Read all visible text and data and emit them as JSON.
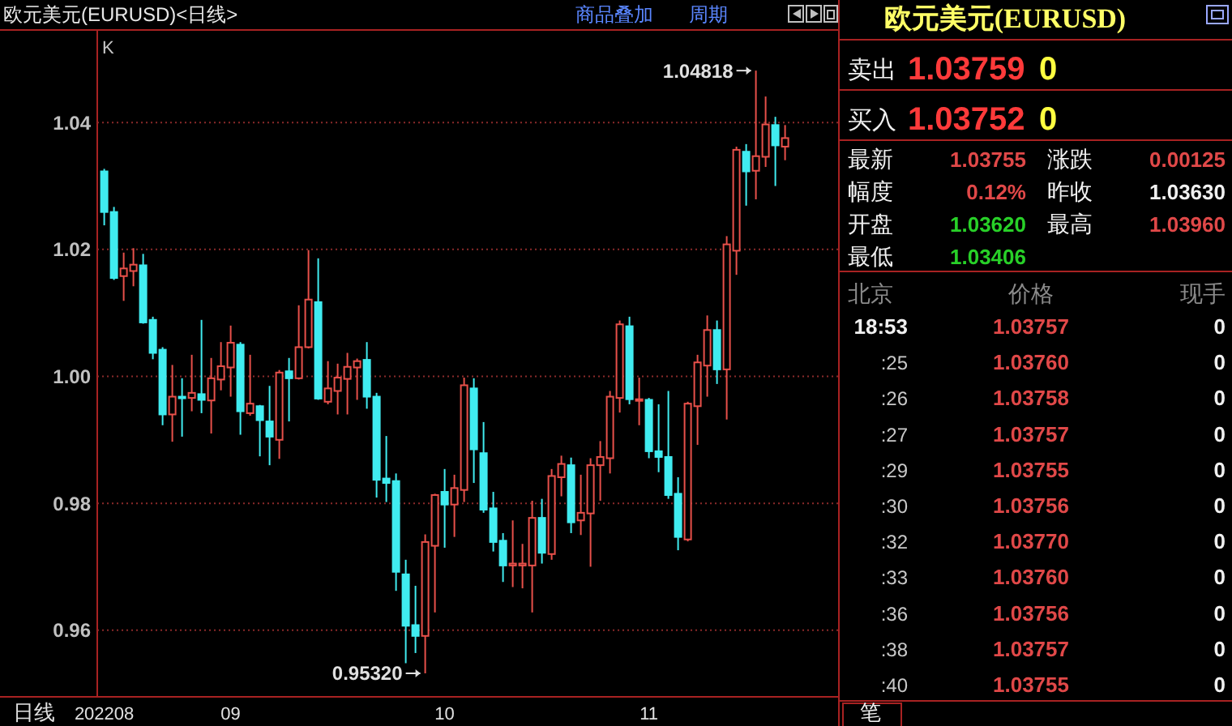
{
  "chart_data": [
    {
      "type": "candlestick",
      "title": "欧元美元(EURUSD)<日线>",
      "categories": [
        "202208",
        null,
        null,
        null,
        null,
        null,
        null,
        null,
        null,
        null,
        null,
        null,
        null,
        "09",
        null,
        null,
        null,
        null,
        null,
        null,
        null,
        null,
        null,
        null,
        null,
        null,
        null,
        null,
        null,
        null,
        null,
        null,
        null,
        null,
        null,
        "10",
        null,
        null,
        null,
        null,
        null,
        null,
        null,
        null,
        null,
        null,
        null,
        null,
        null,
        null,
        null,
        null,
        null,
        null,
        null,
        null,
        "11",
        null,
        null,
        null,
        null,
        null,
        null,
        null,
        null,
        null,
        null,
        null,
        null,
        null,
        null
      ],
      "ohlc": [
        [
          1.0323,
          1.0327,
          1.0238,
          1.0259
        ],
        [
          1.0259,
          1.0267,
          1.0152,
          1.0155
        ],
        [
          1.0158,
          1.0195,
          1.0119,
          1.017
        ],
        [
          1.0166,
          1.0202,
          1.0142,
          1.0176
        ],
        [
          1.0175,
          1.0193,
          1.0083,
          1.0085
        ],
        [
          1.0089,
          1.0094,
          1.0027,
          1.0037
        ],
        [
          1.0042,
          1.0046,
          0.9923,
          0.994
        ],
        [
          0.994,
          1.0018,
          0.9897,
          0.9968
        ],
        [
          0.9968,
          0.9997,
          0.9905,
          0.9966
        ],
        [
          0.9966,
          1.0034,
          0.9945,
          0.9974
        ],
        [
          0.9972,
          1.0089,
          0.9942,
          0.9963
        ],
        [
          0.9962,
          1.0029,
          0.991,
          0.9997
        ],
        [
          0.9995,
          1.0054,
          0.9978,
          1.0016
        ],
        [
          1.0014,
          1.008,
          0.9968,
          1.0053
        ],
        [
          1.005,
          1.0054,
          0.9908,
          0.9945
        ],
        [
          0.9942,
          1.0034,
          0.9938,
          0.9957
        ],
        [
          0.9953,
          0.9955,
          0.9874,
          0.9931
        ],
        [
          0.9929,
          0.9985,
          0.986,
          0.9905
        ],
        [
          0.99,
          1.001,
          0.987,
          1.0006
        ],
        [
          1.0008,
          1.0029,
          0.9929,
          0.9997
        ],
        [
          0.9997,
          1.0112,
          0.9995,
          1.0046
        ],
        [
          1.0046,
          1.0199,
          1.0044,
          1.0121
        ],
        [
          1.0117,
          1.0186,
          0.9963,
          0.9965
        ],
        [
          0.996,
          1.0024,
          0.9956,
          0.9981
        ],
        [
          0.9977,
          1.002,
          0.994,
          0.9998
        ],
        [
          0.9996,
          1.0037,
          0.994,
          1.0015
        ],
        [
          1.0014,
          1.0028,
          0.9963,
          1.0024
        ],
        [
          1.0026,
          1.0054,
          0.9949,
          0.9968
        ],
        [
          0.9968,
          0.9974,
          0.9809,
          0.9837
        ],
        [
          0.9839,
          0.9906,
          0.9802,
          0.9832
        ],
        [
          0.9835,
          0.9847,
          0.9662,
          0.9692
        ],
        [
          0.9688,
          0.9711,
          0.9548,
          0.9607
        ],
        [
          0.9608,
          0.967,
          0.9564,
          0.9591
        ],
        [
          0.9591,
          0.9751,
          0.9532,
          0.9739
        ],
        [
          0.9733,
          0.9815,
          0.9628,
          0.9813
        ],
        [
          0.9818,
          0.9854,
          0.973,
          0.9798
        ],
        [
          0.9798,
          0.9845,
          0.9747,
          0.9824
        ],
        [
          0.9821,
          0.9998,
          0.9802,
          0.9986
        ],
        [
          0.9981,
          0.9997,
          0.9832,
          0.9885
        ],
        [
          0.9879,
          0.9928,
          0.9785,
          0.979
        ],
        [
          0.9792,
          0.9818,
          0.9724,
          0.9739
        ],
        [
          0.9741,
          0.9753,
          0.9676,
          0.9702
        ],
        [
          0.9702,
          0.9773,
          0.9668,
          0.9705
        ],
        [
          0.9702,
          0.9736,
          0.9666,
          0.9705
        ],
        [
          0.9702,
          0.9804,
          0.9628,
          0.9777
        ],
        [
          0.9777,
          0.9807,
          0.9705,
          0.9722
        ],
        [
          0.972,
          0.9854,
          0.9711,
          0.9843
        ],
        [
          0.9841,
          0.9875,
          0.9811,
          0.9862
        ],
        [
          0.986,
          0.9872,
          0.9753,
          0.977
        ],
        [
          0.9773,
          0.9845,
          0.975,
          0.9785
        ],
        [
          0.9784,
          0.9871,
          0.97,
          0.986
        ],
        [
          0.986,
          0.9898,
          0.9804,
          0.9873
        ],
        [
          0.9871,
          0.9977,
          0.9847,
          0.9968
        ],
        [
          0.9966,
          1.0088,
          0.9943,
          1.0082
        ],
        [
          1.0079,
          1.0094,
          0.9956,
          0.9964
        ],
        [
          0.9963,
          0.9998,
          0.9923,
          0.9964
        ],
        [
          0.9963,
          0.9966,
          0.9871,
          0.9882
        ],
        [
          0.9882,
          0.9956,
          0.9849,
          0.9873
        ],
        [
          0.9873,
          0.9977,
          0.9807,
          0.9813
        ],
        [
          0.9815,
          0.9841,
          0.9726,
          0.9747
        ],
        [
          0.9743,
          0.996,
          0.974,
          0.9957
        ],
        [
          0.9953,
          1.0034,
          0.9892,
          1.0022
        ],
        [
          1.0017,
          1.0096,
          0.9968,
          1.0073
        ],
        [
          1.0073,
          1.0088,
          0.9988,
          1.0011
        ],
        [
          1.0011,
          1.0221,
          0.9932,
          1.0208
        ],
        [
          1.0198,
          1.0362,
          1.016,
          1.0357
        ],
        [
          1.0354,
          1.0366,
          1.0269,
          1.0323
        ],
        [
          1.0324,
          1.04818,
          1.0279,
          1.0347
        ],
        [
          1.0346,
          1.0441,
          1.033,
          1.0397
        ],
        [
          1.0396,
          1.0409,
          1.03,
          1.0364
        ],
        [
          1.0362,
          1.0396,
          1.03406,
          1.03755
        ]
      ],
      "colors": [
        "#40ecf0",
        "#40ecf0",
        "#e8504a",
        "#e8504a",
        "#40ecf0",
        "#40ecf0",
        "#40ecf0",
        "#e8504a",
        "#40ecf0",
        "#e8504a",
        "#40ecf0",
        "#e8504a",
        "#e8504a",
        "#e8504a",
        "#40ecf0",
        "#e8504a",
        "#40ecf0",
        "#40ecf0",
        "#e8504a",
        "#40ecf0",
        "#e8504a",
        "#e8504a",
        "#40ecf0",
        "#e8504a",
        "#e8504a",
        "#e8504a",
        "#e8504a",
        "#40ecf0",
        "#40ecf0",
        "#40ecf0",
        "#40ecf0",
        "#40ecf0",
        "#40ecf0",
        "#e8504a",
        "#e8504a",
        "#40ecf0",
        "#e8504a",
        "#e8504a",
        "#40ecf0",
        "#40ecf0",
        "#40ecf0",
        "#40ecf0",
        "#e8504a",
        "#e8504a",
        "#e8504a",
        "#40ecf0",
        "#e8504a",
        "#e8504a",
        "#40ecf0",
        "#e8504a",
        "#e8504a",
        "#e8504a",
        "#e8504a",
        "#e8504a",
        "#40ecf0",
        "#e8504a",
        "#40ecf0",
        "#40ecf0",
        "#40ecf0",
        "#40ecf0",
        "#e8504a",
        "#e8504a",
        "#e8504a",
        "#40ecf0",
        "#e8504a",
        "#e8504a",
        "#40ecf0",
        "#e8504a",
        "#e8504a",
        "#40ecf0",
        "#e8504a"
      ],
      "ylim": [
        0.9495,
        1.0542
      ],
      "yticks": [
        {
          "value": 0.96,
          "label": "0.96"
        },
        {
          "value": 0.98,
          "label": "0.98"
        },
        {
          "value": 1.0,
          "label": "1.00"
        },
        {
          "value": 1.02,
          "label": "1.02"
        },
        {
          "value": 1.04,
          "label": "1.04"
        }
      ],
      "grid": "y",
      "annotations": [
        "K",
        "日线",
        "商品叠加",
        "周期",
        "1.04818",
        "0.95320"
      ]
    },
    {
      "type": "other",
      "title": "欧元美元(EURUSD)",
      "annotations": [
        "卖出",
        "1.03759",
        "0",
        "买入",
        "1.03752",
        "0",
        "最新",
        "1.03755",
        "涨跌",
        "0.00125",
        "幅度",
        "0.12%",
        "昨收",
        "1.03630",
        "开盘",
        "1.03620",
        "最高",
        "1.03960",
        "最低",
        "1.03406",
        "北京",
        "价格",
        "现手",
        "18:53",
        "1.03757",
        "0",
        ":25",
        "1.03760",
        "0",
        ":26",
        "1.03758",
        "0",
        ":27",
        "1.03757",
        "0",
        ":29",
        "1.03755",
        "0",
        ":30",
        "1.03756",
        "0",
        ":32",
        "1.03770",
        "0",
        ":33",
        "1.03760",
        "0",
        ":36",
        "1.03756",
        "0",
        ":38",
        "1.03757",
        "0",
        ":40",
        "1.03755",
        "0",
        "笔"
      ]
    }
  ]
}
